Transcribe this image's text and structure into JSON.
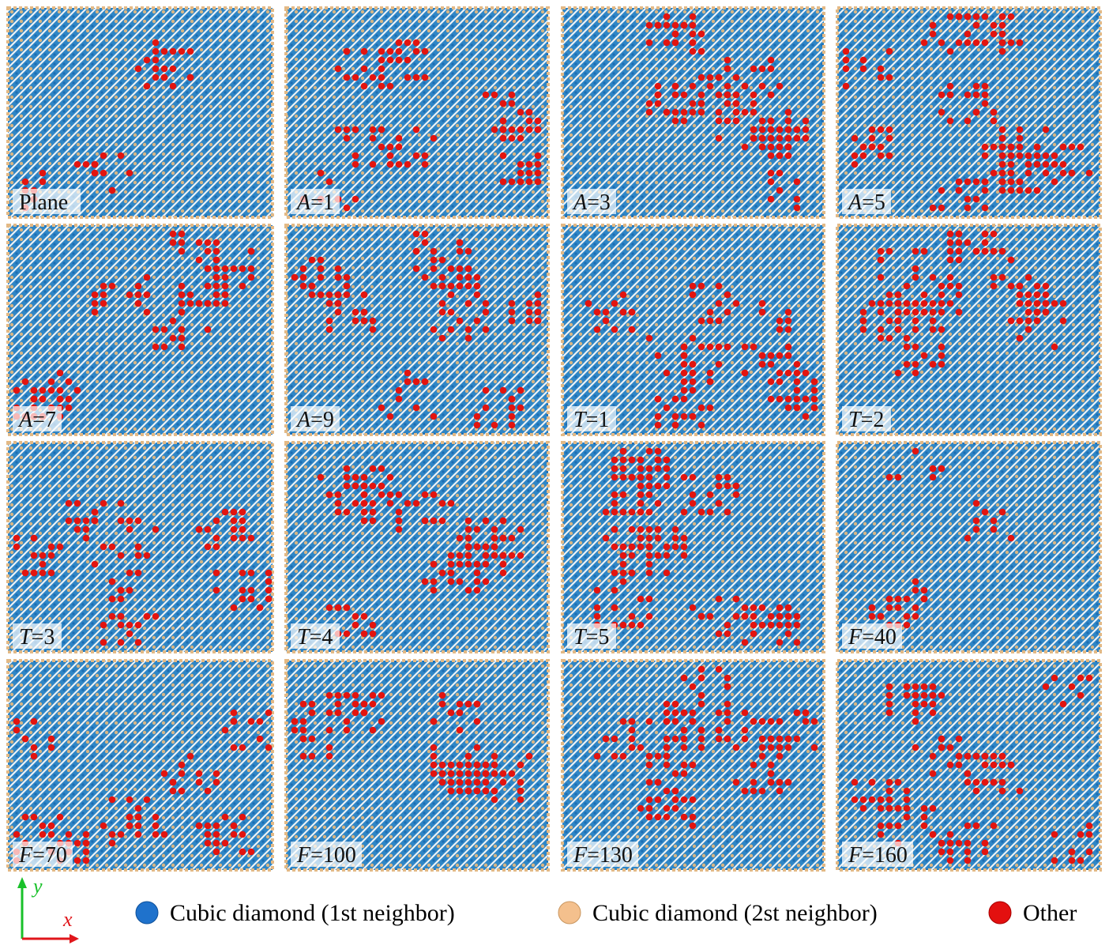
{
  "panels": [
    {
      "text": "Plane"
    },
    {
      "symbol": "A",
      "text": "=1"
    },
    {
      "symbol": "A",
      "text": "=3"
    },
    {
      "symbol": "A",
      "text": "=5"
    },
    {
      "symbol": "A",
      "text": "=7"
    },
    {
      "symbol": "A",
      "text": "=9"
    },
    {
      "symbol": "T",
      "text": "=1"
    },
    {
      "symbol": "T",
      "text": "=2"
    },
    {
      "symbol": "T",
      "text": "=3"
    },
    {
      "symbol": "T",
      "text": "=4"
    },
    {
      "symbol": "T",
      "text": "=5"
    },
    {
      "symbol": "F",
      "text": "=40"
    },
    {
      "symbol": "F",
      "text": "=70"
    },
    {
      "symbol": "F",
      "text": "=100"
    },
    {
      "symbol": "F",
      "text": "=130"
    },
    {
      "symbol": "F",
      "text": "=160"
    }
  ],
  "axes": {
    "y": "y",
    "x": "x"
  },
  "legend": [
    "Cubic diamond (1st neighbor)",
    "Cubic diamond (2st neighbor)",
    "Other"
  ]
}
